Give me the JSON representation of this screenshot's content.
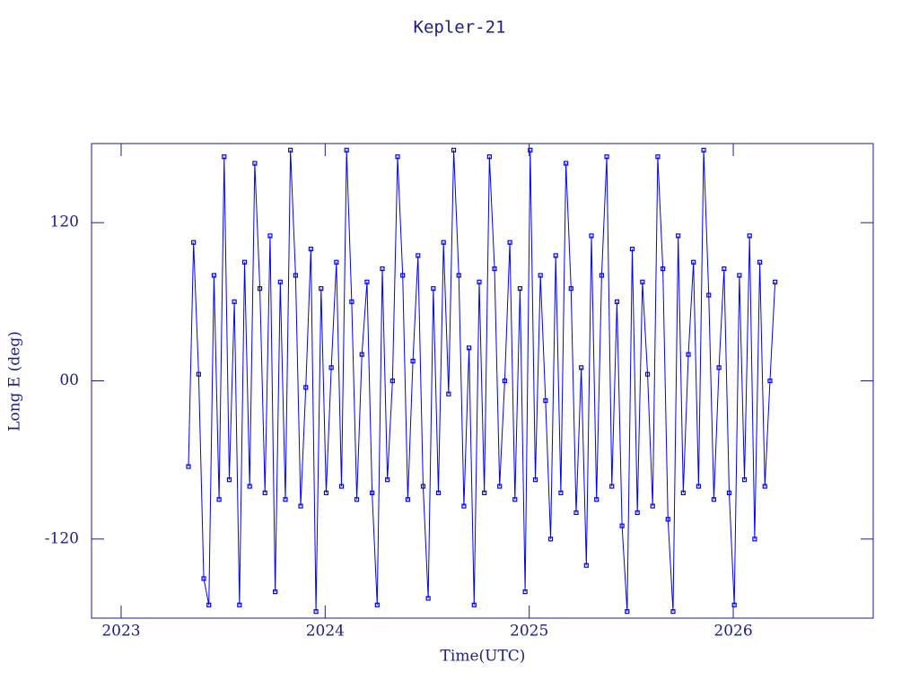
{
  "chart_data": {
    "type": "line",
    "title": "Kepler-21",
    "x_label": "Time(UTC)",
    "y_label": "Long E (deg)",
    "xlim": [
      2022.855,
      2026.686
    ],
    "xticks": [
      2023,
      2024,
      2025,
      2026
    ],
    "ylim": [
      -180,
      180
    ],
    "yticks": [
      -120,
      {
        "value": 0,
        "label": "00"
      },
      120
    ],
    "series": [
      {
        "color": "#0000ff",
        "x": [
          2023.33,
          2023.355,
          2023.38,
          2023.405,
          2023.43,
          2023.455,
          2023.48,
          2023.505,
          2023.53,
          2023.555,
          2023.58,
          2023.605,
          2023.63,
          2023.655,
          2023.68,
          2023.705,
          2023.73,
          2023.755,
          2023.78,
          2023.805,
          2023.83,
          2023.855,
          2023.88,
          2023.905,
          2023.93,
          2023.955,
          2023.98,
          2024.005,
          2024.03,
          2024.055,
          2024.08,
          2024.105,
          2024.13,
          2024.155,
          2024.18,
          2024.205,
          2024.23,
          2024.255,
          2024.28,
          2024.305,
          2024.33,
          2024.355,
          2024.38,
          2024.405,
          2024.43,
          2024.455,
          2024.48,
          2024.505,
          2024.53,
          2024.555,
          2024.58,
          2024.605,
          2024.63,
          2024.655,
          2024.68,
          2024.705,
          2024.73,
          2024.755,
          2024.78,
          2024.805,
          2024.83,
          2024.855,
          2024.88,
          2024.905,
          2024.93,
          2024.955,
          2024.98,
          2025.005,
          2025.03,
          2025.055,
          2025.08,
          2025.105,
          2025.13,
          2025.155,
          2025.18,
          2025.205,
          2025.23,
          2025.255,
          2025.28,
          2025.305,
          2025.33,
          2025.355,
          2025.38,
          2025.405,
          2025.43,
          2025.455,
          2025.48,
          2025.505,
          2025.53,
          2025.555,
          2025.58,
          2025.605,
          2025.63,
          2025.655,
          2025.68,
          2025.705,
          2025.73,
          2025.755,
          2025.78,
          2025.805,
          2025.83,
          2025.855,
          2025.88,
          2025.905,
          2025.93,
          2025.955,
          2025.98,
          2026.005,
          2026.03,
          2026.055,
          2026.08,
          2026.105,
          2026.13,
          2026.155,
          2026.18,
          2026.205
        ],
        "values": [
          -65,
          105,
          5,
          -150,
          -170,
          80,
          -90,
          170,
          -75,
          60,
          -170,
          90,
          -80,
          165,
          70,
          -85,
          110,
          -160,
          75,
          -90,
          175,
          80,
          -95,
          -5,
          100,
          -175,
          70,
          -85,
          10,
          90,
          -80,
          175,
          60,
          -90,
          20,
          75,
          -85,
          -170,
          85,
          -75,
          0,
          170,
          80,
          -90,
          15,
          95,
          -80,
          -165,
          70,
          -85,
          105,
          -10,
          175,
          80,
          -95,
          25,
          -170,
          75,
          -85,
          170,
          85,
          -80,
          0,
          105,
          -90,
          70,
          -160,
          175,
          -75,
          80,
          -15,
          -120,
          95,
          -85,
          165,
          70,
          -100,
          10,
          -140,
          110,
          -90,
          80,
          170,
          -80,
          60,
          -110,
          -175,
          100,
          -100,
          75,
          5,
          -95,
          170,
          85,
          -105,
          -175,
          110,
          -85,
          20,
          90,
          -80,
          175,
          65,
          -90,
          10,
          85,
          -85,
          -170,
          80,
          -75,
          110,
          -120,
          90,
          -80,
          0,
          75
        ]
      }
    ]
  }
}
